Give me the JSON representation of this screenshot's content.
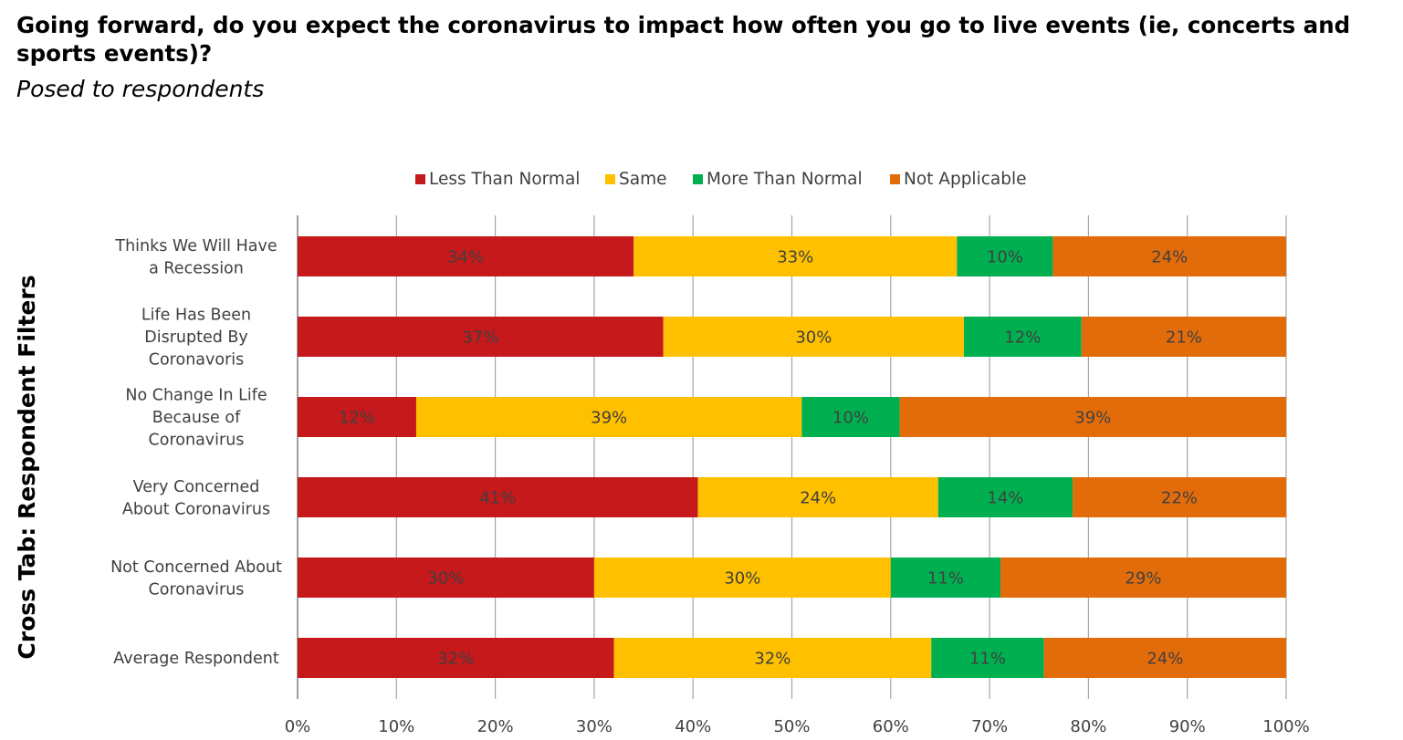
{
  "chart_data": {
    "type": "bar",
    "orientation": "horizontal",
    "stacked": true,
    "title": "Going forward, do you expect the coronavirus to impact how often you go to live events (ie, concerts and sports events)?",
    "subtitle": "Posed to respondents",
    "ylabel": "Cross Tab: Respondent Filters",
    "xlim": [
      0,
      1
    ],
    "xticks": [
      "0%",
      "10%",
      "20%",
      "30%",
      "40%",
      "50%",
      "60%",
      "70%",
      "80%",
      "90%",
      "100%"
    ],
    "grid": true,
    "legend_position": "top",
    "categories": [
      [
        "Thinks We Will Have",
        "a Recession"
      ],
      [
        "Life Has Been",
        "Disrupted By",
        "Coronavoris"
      ],
      [
        "No Change In Life",
        "Because of",
        "Coronavirus"
      ],
      [
        "Very Concerned",
        "About Coronavirus"
      ],
      [
        "Not Concerned About",
        "Coronavirus"
      ],
      [
        "Average Respondent"
      ]
    ],
    "series": [
      {
        "name": "Less Than Normal",
        "color": "#c5191b",
        "values": [
          0.34,
          0.37,
          0.12,
          0.405,
          0.3,
          0.32
        ],
        "labels": [
          "34%",
          "37%",
          "12%",
          "41%",
          "30%",
          "32%"
        ]
      },
      {
        "name": "Same",
        "color": "#ffc000",
        "values": [
          0.327,
          0.304,
          0.39,
          0.243,
          0.3,
          0.321
        ],
        "labels": [
          "33%",
          "30%",
          "39%",
          "24%",
          "30%",
          "32%"
        ]
      },
      {
        "name": "More Than Normal",
        "color": "#00b050",
        "values": [
          0.097,
          0.119,
          0.099,
          0.136,
          0.111,
          0.114
        ],
        "labels": [
          "10%",
          "12%",
          "10%",
          "14%",
          "11%",
          "11%"
        ]
      },
      {
        "name": "Not Applicable",
        "color": "#e36c0a",
        "values": [
          0.236,
          0.207,
          0.391,
          0.216,
          0.289,
          0.245
        ],
        "labels": [
          "24%",
          "21%",
          "39%",
          "22%",
          "29%",
          "24%"
        ]
      }
    ]
  }
}
